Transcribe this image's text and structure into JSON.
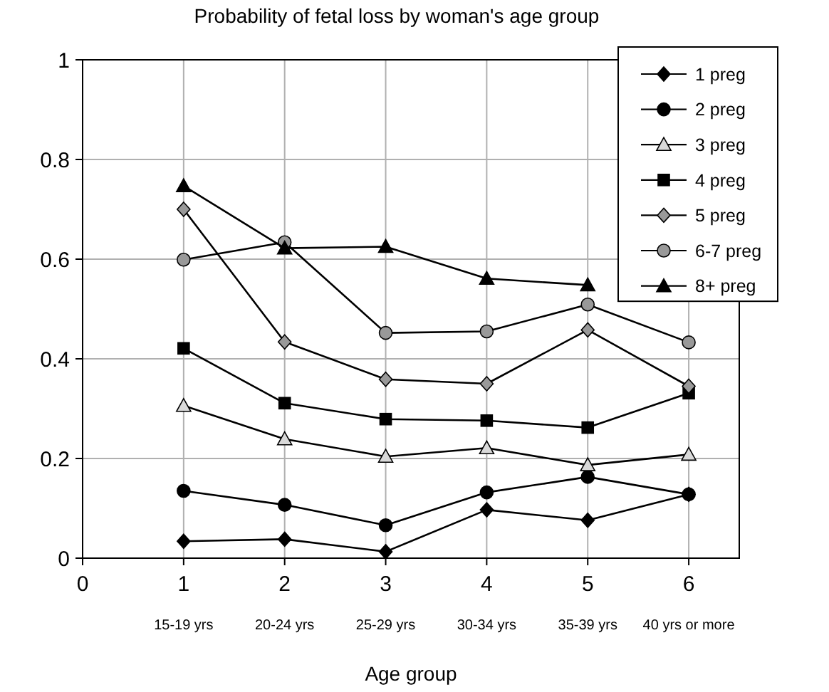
{
  "chart_data": {
    "type": "line",
    "title": "Probability of fetal loss by woman's age group",
    "xlabel": "Age group",
    "xlim": [
      0,
      6.5
    ],
    "xticks": [
      0,
      1,
      2,
      3,
      4,
      5,
      6
    ],
    "ylim": [
      0,
      1
    ],
    "yticks": [
      0,
      0.2,
      0.4,
      0.6,
      0.8,
      1
    ],
    "grid": true,
    "legend": "top right",
    "x": [
      1,
      2,
      3,
      4,
      5,
      6
    ],
    "annotations": [
      "15-19 yrs",
      "20-24 yrs",
      "25-29 yrs",
      "30-34 yrs",
      "35-39 yrs",
      "40 yrs or more"
    ],
    "series": [
      {
        "name": "1 preg",
        "color": "#000000",
        "marker": "diamond",
        "values": [
          0.034,
          0.038,
          0.013,
          0.097,
          0.076,
          0.128
        ]
      },
      {
        "name": "2 preg",
        "color": "#000000",
        "marker": "circle",
        "values": [
          0.135,
          0.107,
          0.066,
          0.132,
          0.163,
          0.128
        ]
      },
      {
        "name": "3 preg",
        "color": "#d9d9d9",
        "marker": "triangle",
        "values": [
          0.306,
          0.239,
          0.204,
          0.221,
          0.187,
          0.208
        ]
      },
      {
        "name": "4 preg",
        "color": "#000000",
        "marker": "square",
        "values": [
          0.421,
          0.311,
          0.279,
          0.276,
          0.262,
          0.331
        ]
      },
      {
        "name": "5 preg",
        "color": "#999999",
        "marker": "diamond",
        "values": [
          0.7,
          0.434,
          0.359,
          0.35,
          0.458,
          0.345
        ]
      },
      {
        "name": "6-7 preg",
        "color": "#999999",
        "marker": "circle",
        "values": [
          0.599,
          0.634,
          0.452,
          0.455,
          0.509,
          0.433
        ]
      },
      {
        "name": "8+ preg",
        "color": "#000000",
        "marker": "triangle",
        "values": [
          0.747,
          0.622,
          0.625,
          0.561,
          0.548,
          null
        ]
      }
    ]
  }
}
